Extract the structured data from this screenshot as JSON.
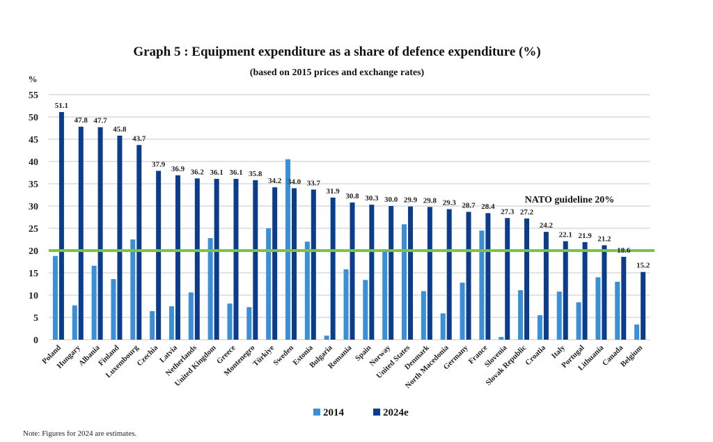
{
  "chart_data": {
    "type": "bar",
    "title": "Graph 5 : Equipment expenditure as a share of defence expenditure (%)",
    "subtitle": "(based on 2015 prices and exchange rates)",
    "xlabel": "",
    "ylabel": "%",
    "ylim": [
      0,
      55
    ],
    "yticks": [
      0,
      5,
      10,
      15,
      20,
      25,
      30,
      35,
      40,
      45,
      50,
      55
    ],
    "grid": true,
    "legend_position": "bottom-center",
    "categories": [
      "Poland",
      "Hungary",
      "Albania",
      "Finland",
      "Luxembourg",
      "Czechia",
      "Latvia",
      "Netherlands",
      "United Kingdom",
      "Greece",
      "Montenegro",
      "Türkiye",
      "Sweden",
      "Estonia",
      "Bulgaria",
      "Romania",
      "Spain",
      "Norway",
      "United States",
      "Denmark",
      "North Macedonia",
      "Germany",
      "France",
      "Slovenia",
      "Slovak Republic",
      "Croatia",
      "Italy",
      "Portugal",
      "Lithuania",
      "Canada",
      "Belgium"
    ],
    "series": [
      {
        "name": "2014",
        "color": "#3a8fd6",
        "values": [
          18.8,
          7.7,
          16.6,
          13.6,
          22.5,
          6.4,
          7.5,
          10.6,
          22.8,
          8.1,
          7.3,
          25.0,
          40.5,
          22.0,
          0.9,
          15.8,
          13.4,
          20.3,
          25.9,
          10.9,
          5.9,
          12.8,
          24.5,
          0.6,
          11.1,
          5.5,
          10.8,
          8.4,
          14.0,
          13.0,
          3.4
        ],
        "labeled": false
      },
      {
        "name": "2024e",
        "color": "#0b3d8c",
        "values": [
          51.1,
          47.8,
          47.7,
          45.8,
          43.7,
          37.9,
          36.9,
          36.2,
          36.1,
          36.1,
          35.8,
          34.2,
          34.0,
          33.7,
          31.9,
          30.8,
          30.3,
          30.0,
          29.9,
          29.8,
          29.3,
          28.7,
          28.4,
          27.3,
          27.2,
          24.2,
          22.1,
          21.9,
          21.2,
          18.6,
          15.2
        ],
        "labels": [
          "51.1",
          "47.8",
          "47.7",
          "45.8",
          "43.7",
          "37.9",
          "36.9",
          "36.2",
          "36.1",
          "36.1",
          "35.8",
          "34.2",
          "34.0",
          "33.7",
          "31.9",
          "30.8",
          "30.3",
          "30.0",
          "29.9",
          "29.8",
          "29.3",
          "28.7",
          "28.4",
          "27.3",
          "27.2",
          "24.2",
          "22.1",
          "21.9",
          "21.2",
          "18.6",
          "15.2"
        ],
        "labeled": true
      }
    ],
    "reference_line": {
      "value": 20,
      "label": "NATO guideline 20%",
      "color": "#7dc242"
    },
    "note": "Note: Figures for 2024 are estimates."
  }
}
